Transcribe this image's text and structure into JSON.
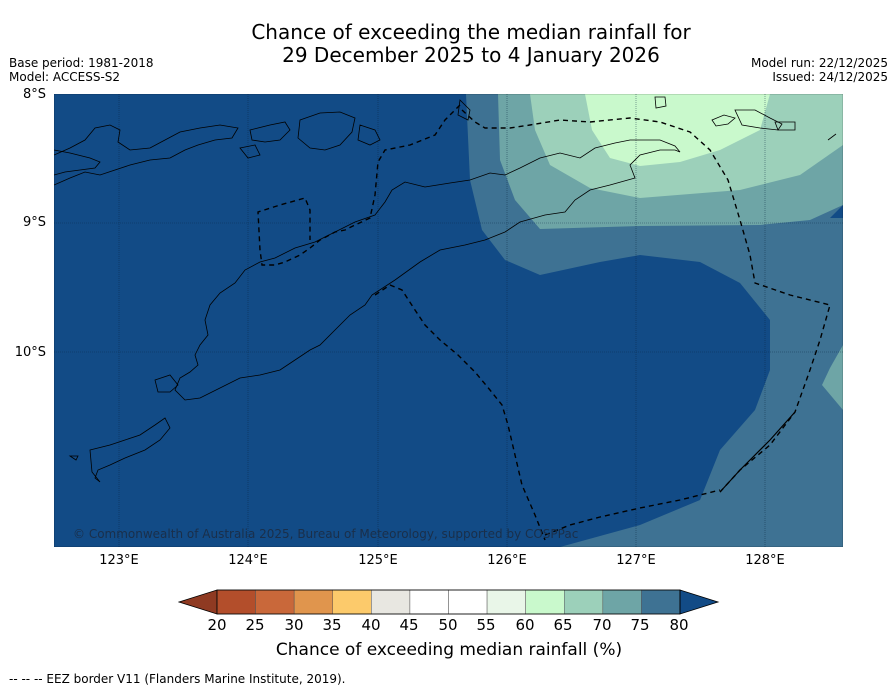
{
  "title": {
    "line1": "Chance of exceeding the median rainfall for",
    "line2": "29 December 2025 to 4 January 2026"
  },
  "meta": {
    "base_period": "Base period: 1981-2018",
    "model": "Model: ACCESS-S2",
    "model_run": "Model run: 22/12/2025",
    "issued": "Issued: 24/12/2025"
  },
  "map": {
    "lat_labels": [
      "8°S",
      "9°S",
      "10°S"
    ],
    "lon_labels": [
      "123°E",
      "124°E",
      "125°E",
      "126°E",
      "127°E",
      "128°E"
    ],
    "copyright": "© Commonwealth of Australia 2025, Bureau of Meteorology, supported by COSPPac",
    "region_colors": {
      "c75_80": "#3e7293",
      "c80_plus": "#124b86",
      "c70_75": "#6ea5a6",
      "c65_70": "#9cd0ba",
      "c60_65": "#c9f9cc"
    }
  },
  "colorbar": {
    "ticks": [
      "20",
      "25",
      "30",
      "35",
      "40",
      "45",
      "50",
      "55",
      "60",
      "65",
      "70",
      "75",
      "80"
    ],
    "colors": [
      "#b34e2b",
      "#c9683a",
      "#e0954d",
      "#fcca6b",
      "#e8e7e1",
      "#ffffff",
      "#ffffff",
      "#e9f6e8",
      "#c9f9cc",
      "#9cd0ba",
      "#6ea5a6",
      "#3e7293"
    ],
    "under_color": "#8f3a22",
    "over_color": "#124b86",
    "label": "Chance of exceeding median rainfall (%)"
  },
  "footnote": "--  --  -- EEZ border V11 (Flanders Marine Institute, 2019)."
}
